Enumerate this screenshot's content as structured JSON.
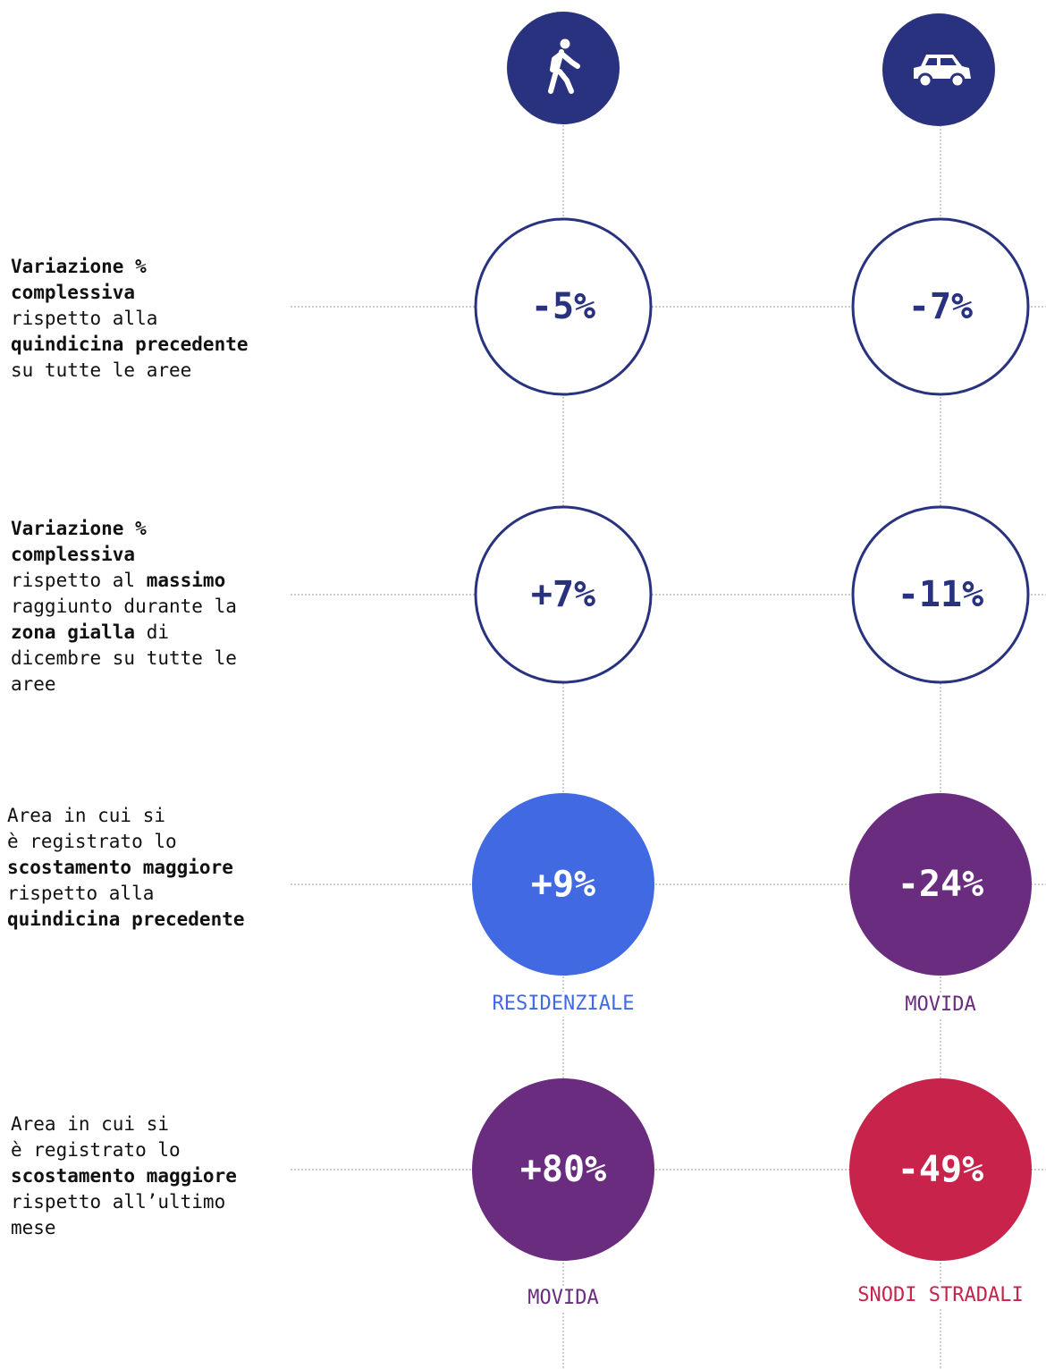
{
  "rows": [
    {
      "lines": [
        [
          {
            "text": "Variazione %",
            "bold": true
          }
        ],
        [
          {
            "text": "complessiva",
            "bold": true
          }
        ],
        [
          {
            "text": "rispetto alla",
            "bold": false
          }
        ],
        [
          {
            "text": "quindicina precedente",
            "bold": true
          }
        ],
        [
          {
            "text": "su tutte le aree",
            "bold": false
          }
        ]
      ],
      "cells": [
        {
          "value": "-5%",
          "color": "#29327f",
          "filled": false
        },
        {
          "value": "-7%",
          "color": "#29327f",
          "filled": false
        }
      ]
    },
    {
      "lines": [
        [
          {
            "text": "Variazione %",
            "bold": true
          }
        ],
        [
          {
            "text": "complessiva",
            "bold": true
          }
        ],
        [
          {
            "text": "rispetto al ",
            "bold": false
          },
          {
            "text": "massimo",
            "bold": true
          }
        ],
        [
          {
            "text": "raggiunto durante la",
            "bold": false
          }
        ],
        [
          {
            "text": "zona gialla",
            "bold": true
          },
          {
            "text": " di",
            "bold": false
          }
        ],
        [
          {
            "text": "dicembre su tutte le",
            "bold": false
          }
        ],
        [
          {
            "text": "aree",
            "bold": false
          }
        ]
      ],
      "cells": [
        {
          "value": "+7%",
          "color": "#29327f",
          "filled": false
        },
        {
          "value": "-11%",
          "color": "#29327f",
          "filled": false
        }
      ]
    },
    {
      "lines": [
        [
          {
            "text": "Area in cui si",
            "bold": false
          }
        ],
        [
          {
            "text": "è registrato lo",
            "bold": false
          }
        ],
        [
          {
            "text": "scostamento maggiore",
            "bold": true
          }
        ],
        [
          {
            "text": "rispetto alla",
            "bold": false
          }
        ],
        [
          {
            "text": "quindicina precedente",
            "bold": true
          }
        ]
      ],
      "cells": [
        {
          "value": "+9%",
          "color": "#4169e1",
          "filled": true,
          "area": "RESIDENZIALE"
        },
        {
          "value": "-24%",
          "color": "#6a2c7e",
          "filled": true,
          "area": "MOVIDA"
        }
      ]
    },
    {
      "lines": [
        [
          {
            "text": "Area in cui si",
            "bold": false
          }
        ],
        [
          {
            "text": "è registrato lo",
            "bold": false
          }
        ],
        [
          {
            "text": "scostamento maggiore",
            "bold": true
          }
        ],
        [
          {
            "text": "rispetto all’ultimo",
            "bold": false
          }
        ],
        [
          {
            "text": "mese",
            "bold": false
          }
        ]
      ],
      "cells": [
        {
          "value": "+80%",
          "color": "#6a2c7e",
          "filled": true,
          "area": "MOVIDA"
        },
        {
          "value": "-49%",
          "color": "#c8234a",
          "filled": true,
          "area": "SNODI STRADALI"
        }
      ]
    }
  ]
}
